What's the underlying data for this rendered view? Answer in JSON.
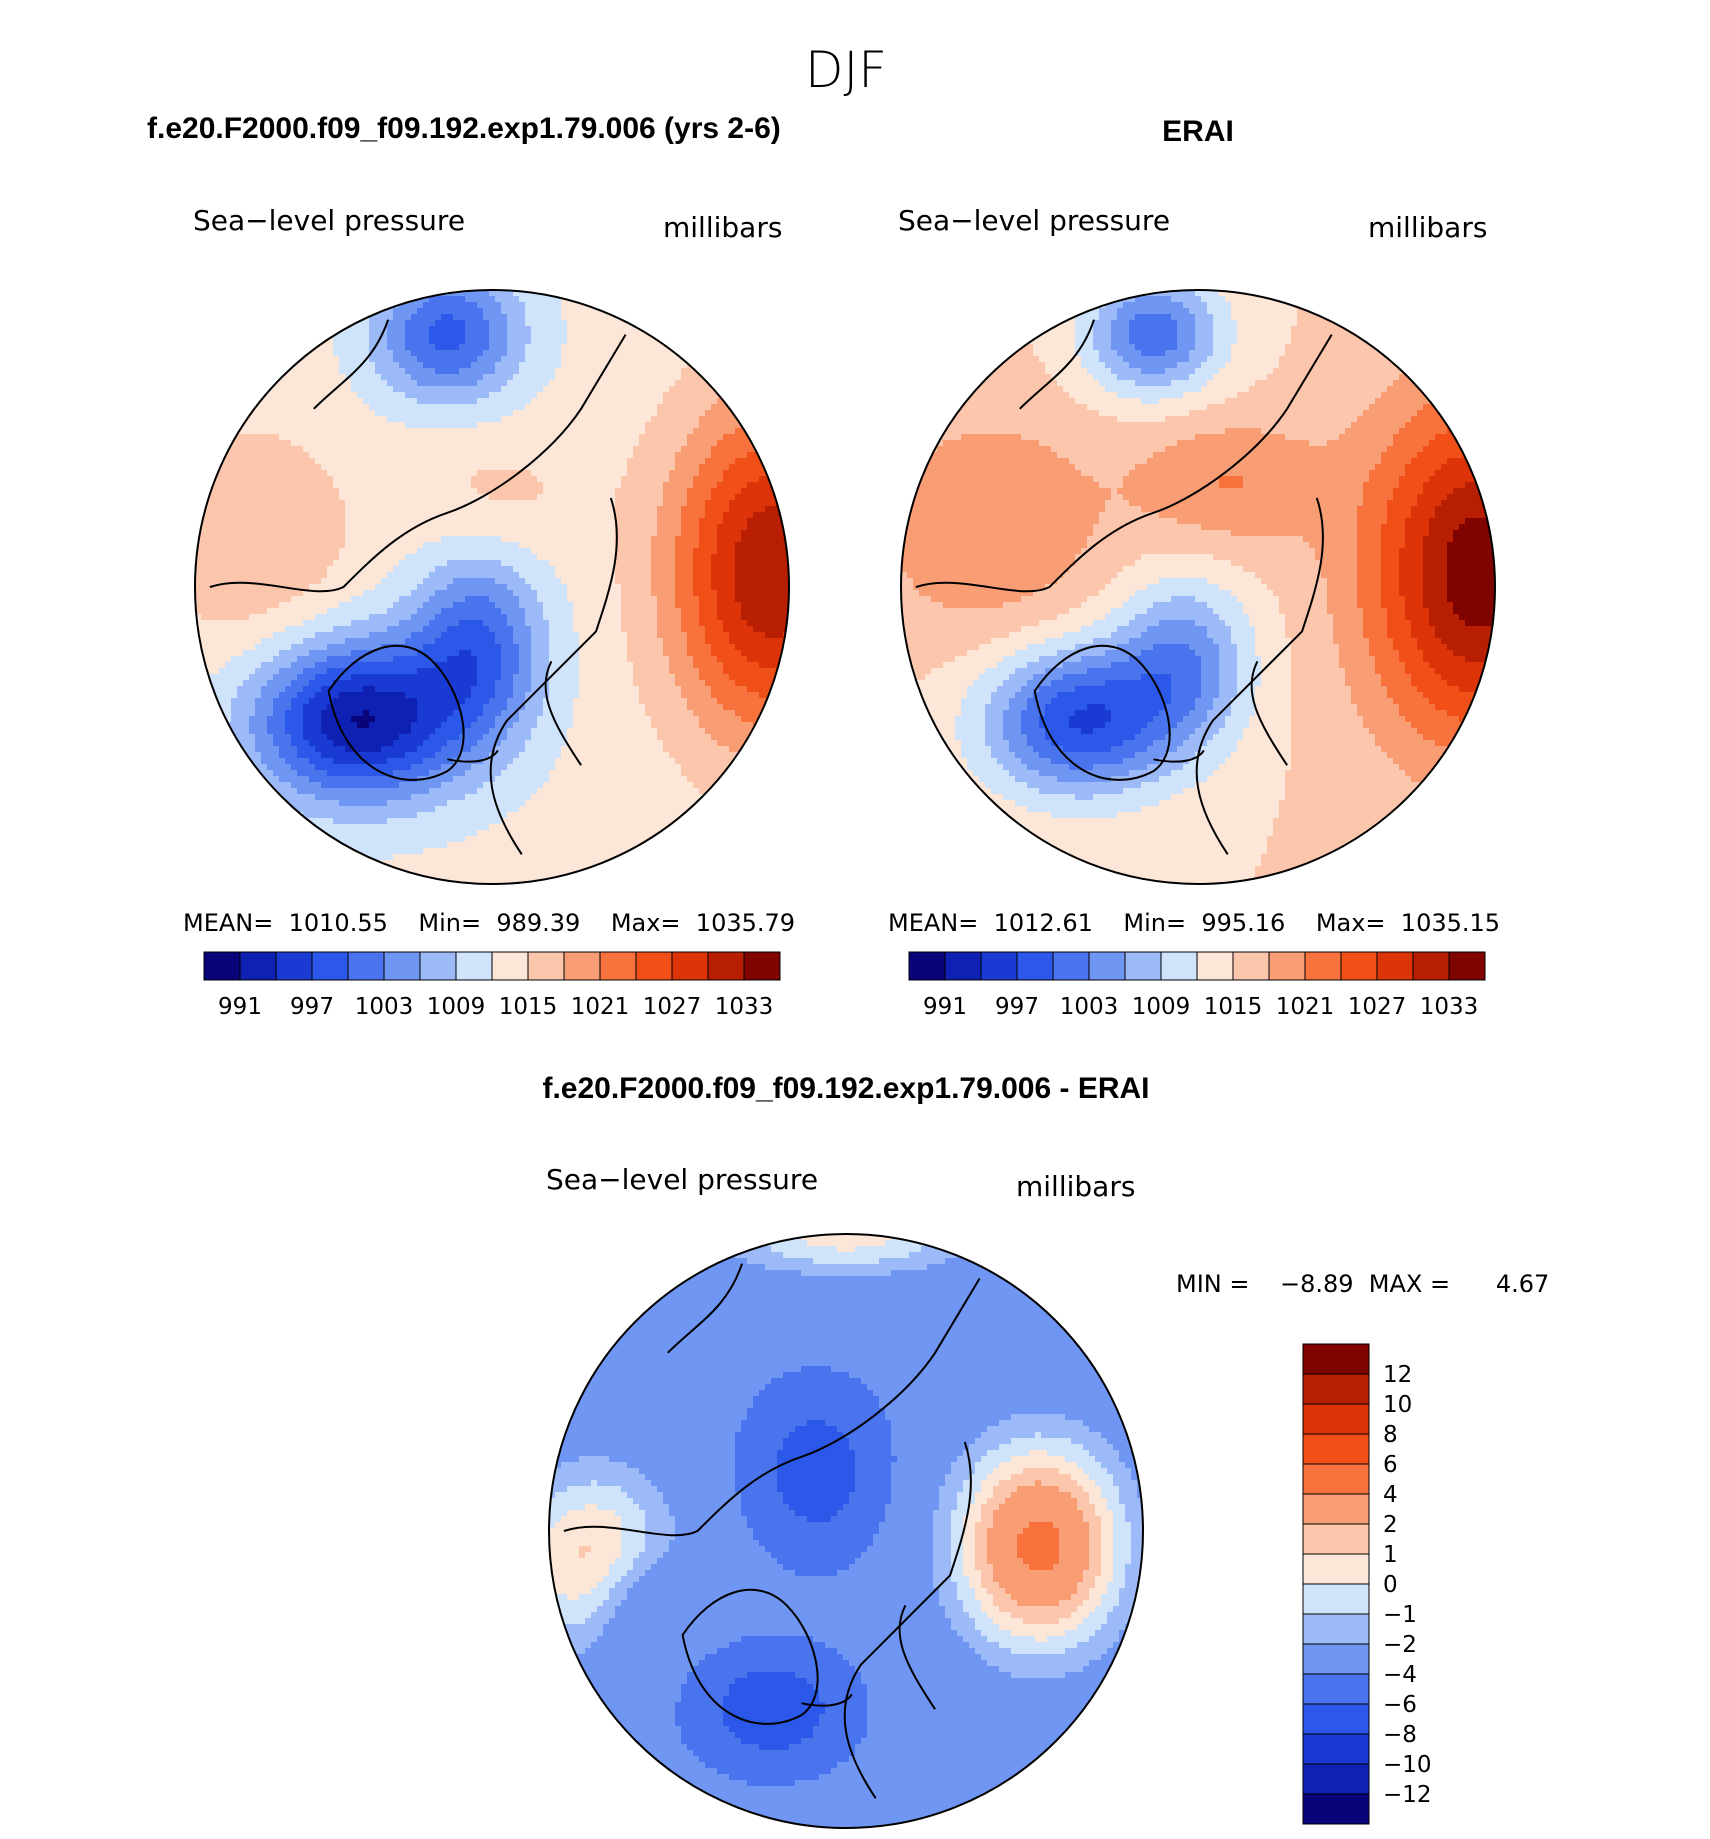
{
  "figure_title": "DJF",
  "panels": [
    {
      "title": "f.e20.F2000.f09_f09.192.exp1.79.006 (yrs 2-6)",
      "left_string": "Sea−level pressure",
      "right_string": "millibars",
      "stats": "MEAN=  1010.55    Min=  989.39    Max=  1035.79"
    },
    {
      "title": "ERAI",
      "left_string": "Sea−level pressure",
      "right_string": "millibars",
      "stats": "MEAN=  1012.61    Min=  995.16    Max=  1035.15"
    },
    {
      "title": "f.e20.F2000.f09_f09.192.exp1.79.006 - ERAI",
      "left_string": "Sea−level pressure",
      "right_string": "millibars",
      "stats": "MIN =    −8.89  MAX =      4.67"
    }
  ],
  "chart_data": [
    {
      "type": "heatmap",
      "title": "f.e20.F2000.f09_f09.192.exp1.79.006 (yrs 2-6)",
      "variable": "Sea−level pressure",
      "units": "millibars",
      "projection": "north polar stereographic",
      "mean": 1010.55,
      "min": 989.39,
      "max": 1035.79,
      "colorbar_levels": [
        991,
        994,
        997,
        1000,
        1003,
        1006,
        1009,
        1012,
        1015,
        1018,
        1021,
        1024,
        1027,
        1030,
        1033
      ],
      "colorbar_tick_labels": [
        "991",
        "997",
        "1003",
        "1009",
        "1015",
        "1021",
        "1027",
        "1033"
      ]
    },
    {
      "type": "heatmap",
      "title": "ERAI",
      "variable": "Sea−level pressure",
      "units": "millibars",
      "projection": "north polar stereographic",
      "mean": 1012.61,
      "min": 995.16,
      "max": 1035.15,
      "colorbar_levels": [
        991,
        994,
        997,
        1000,
        1003,
        1006,
        1009,
        1012,
        1015,
        1018,
        1021,
        1024,
        1027,
        1030,
        1033
      ],
      "colorbar_tick_labels": [
        "991",
        "997",
        "1003",
        "1009",
        "1015",
        "1021",
        "1027",
        "1033"
      ]
    },
    {
      "type": "heatmap",
      "title": "f.e20.F2000.f09_f09.192.exp1.79.006 - ERAI",
      "variable": "Sea−level pressure",
      "units": "millibars",
      "projection": "north polar stereographic",
      "min": -8.89,
      "max": 4.67,
      "colorbar_levels": [
        -12,
        -10,
        -8,
        -6,
        -4,
        -2,
        -1,
        0,
        1,
        2,
        4,
        6,
        8,
        10,
        12
      ],
      "colorbar_tick_labels": [
        "12",
        "10",
        "8",
        "6",
        "4",
        "2",
        "1",
        "0",
        "−1",
        "−2",
        "−4",
        "−6",
        "−8",
        "−10",
        "−12"
      ]
    }
  ],
  "colors": {
    "palette": [
      "#08057a",
      "#0e21b2",
      "#1a3ad4",
      "#2b58e8",
      "#4a74ee",
      "#7096f3",
      "#9dbaf8",
      "#cfe3fb",
      "#fbe6d8",
      "#fbc6ac",
      "#f99d74",
      "#f7723d",
      "#f04f18",
      "#dc3408",
      "#b81e02",
      "#7f0400"
    ],
    "coastline": "#000000",
    "map_edge": "#000000"
  }
}
